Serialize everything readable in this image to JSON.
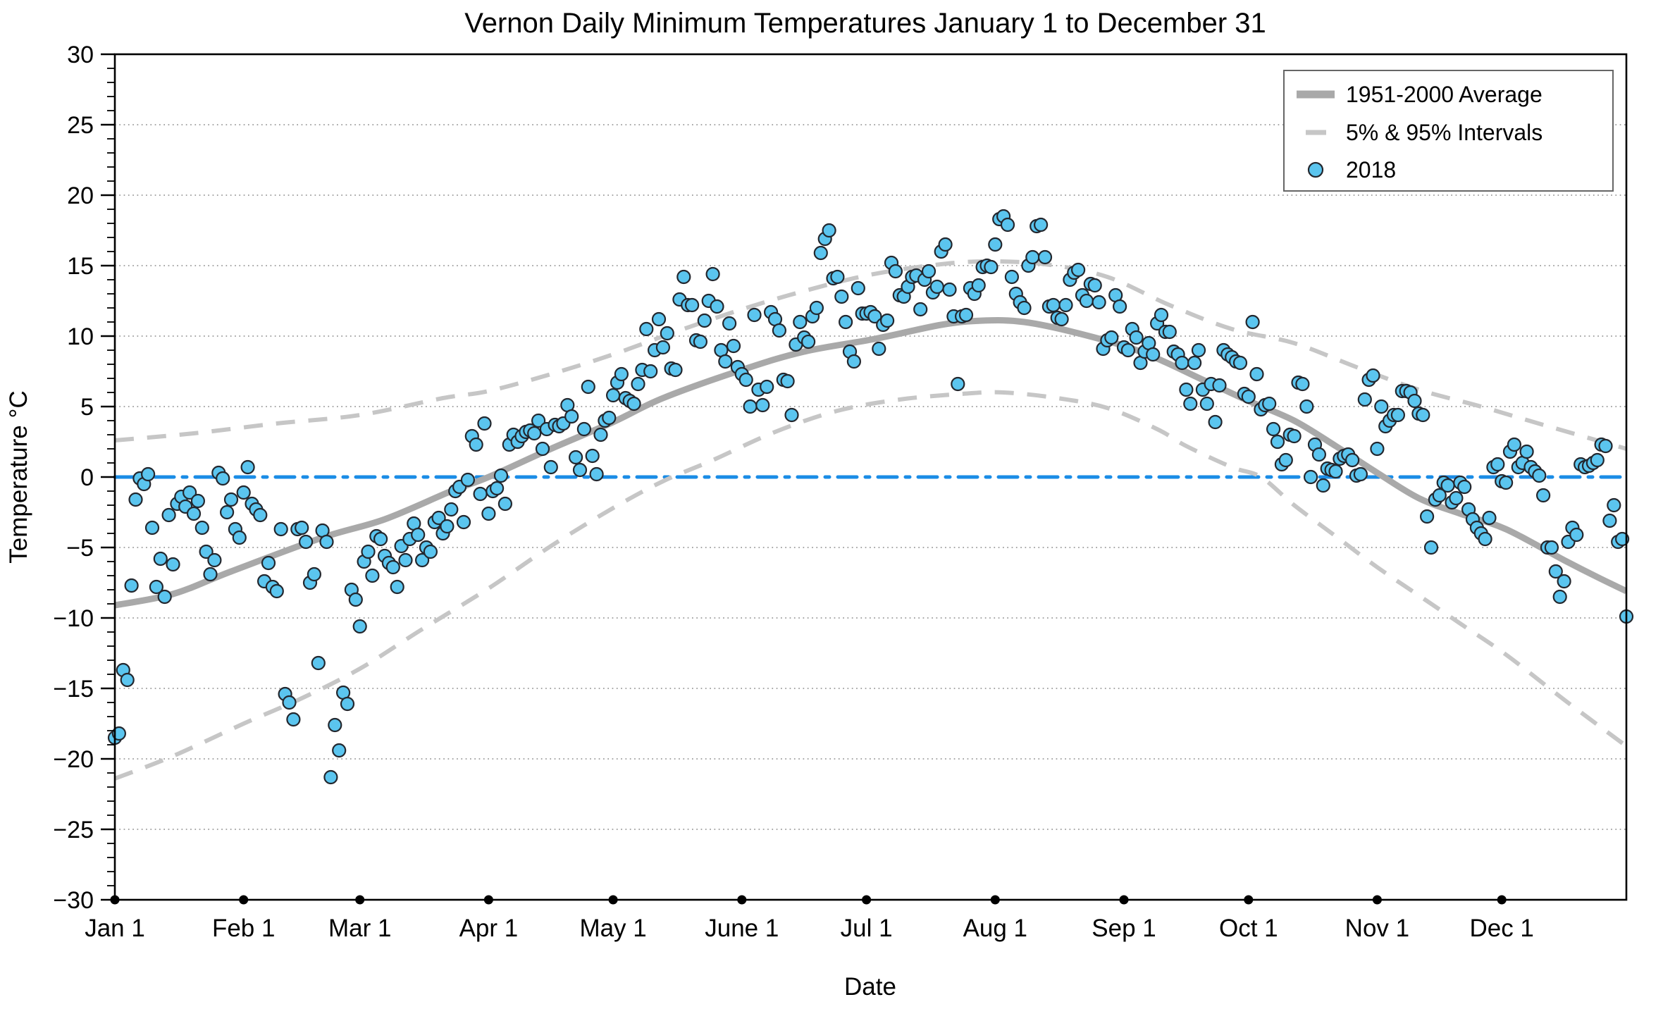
{
  "chart_data": {
    "type": "scatter",
    "title": "Vernon Daily Minimum Temperatures January 1 to December 31",
    "xlabel": "Date",
    "ylabel": "Temperature °C",
    "ylim": [
      -30,
      30
    ],
    "y_major_step": 5,
    "y_minor_step": 1,
    "grid": "dotted horizontal at multiples of 5 except 0",
    "legend_position": "upper right",
    "legend": [
      {
        "label": "1951-2000 Average",
        "swatch": "thick-gray-line"
      },
      {
        "label": "5% & 95% Intervals",
        "swatch": "gray-dash"
      },
      {
        "label": "2018",
        "swatch": "blue-point"
      }
    ],
    "y_tick_labels": [
      "30",
      "25",
      "20",
      "15",
      "10",
      "5",
      "0",
      "−5",
      "−10",
      "−15",
      "−20",
      "−25",
      "−30"
    ],
    "x_ticks": [
      {
        "day": 1,
        "label": "Jan 1"
      },
      {
        "day": 32,
        "label": "Feb 1"
      },
      {
        "day": 60,
        "label": "Mar 1"
      },
      {
        "day": 91,
        "label": "Apr 1"
      },
      {
        "day": 121,
        "label": "May 1"
      },
      {
        "day": 152,
        "label": "June 1"
      },
      {
        "day": 182,
        "label": "Jul 1"
      },
      {
        "day": 213,
        "label": "Aug 1"
      },
      {
        "day": 244,
        "label": "Sep 1"
      },
      {
        "day": 274,
        "label": "Oct 1"
      },
      {
        "day": 305,
        "label": "Nov 1"
      },
      {
        "day": 335,
        "label": "Dec 1"
      }
    ],
    "zero_reference_line": {
      "y": 0,
      "style": "dash-dot",
      "color": "#1a8ce6"
    },
    "series": [
      {
        "name": "1951-2000 Average",
        "type": "line",
        "points": [
          [
            1,
            -9.1
          ],
          [
            15,
            -8.3
          ],
          [
            29,
            -6.7
          ],
          [
            51,
            -4.3
          ],
          [
            66,
            -3.0
          ],
          [
            82,
            -1.0
          ],
          [
            91,
            0.0
          ],
          [
            106,
            2.0
          ],
          [
            121,
            3.9
          ],
          [
            133,
            5.6
          ],
          [
            152,
            7.6
          ],
          [
            167,
            8.9
          ],
          [
            184,
            9.8
          ],
          [
            200,
            10.8
          ],
          [
            210,
            11.1
          ],
          [
            220,
            11.0
          ],
          [
            233,
            10.2
          ],
          [
            248,
            8.9
          ],
          [
            263,
            6.9
          ],
          [
            274,
            5.4
          ],
          [
            285,
            4.0
          ],
          [
            295,
            2.2
          ],
          [
            305,
            0.3
          ],
          [
            315,
            -1.5
          ],
          [
            325,
            -2.6
          ],
          [
            336,
            -3.7
          ],
          [
            350,
            -5.9
          ],
          [
            358,
            -7.1
          ],
          [
            365,
            -8.1
          ]
        ]
      },
      {
        "name": "95% Interval",
        "type": "dashed-line",
        "points": [
          [
            1,
            2.6
          ],
          [
            20,
            3.1
          ],
          [
            40,
            3.8
          ],
          [
            60,
            4.4
          ],
          [
            80,
            5.6
          ],
          [
            91,
            6.1
          ],
          [
            106,
            7.3
          ],
          [
            121,
            8.7
          ],
          [
            136,
            10.3
          ],
          [
            152,
            11.9
          ],
          [
            167,
            13.2
          ],
          [
            182,
            14.3
          ],
          [
            197,
            15.0
          ],
          [
            210,
            15.3
          ],
          [
            225,
            15.1
          ],
          [
            240,
            14.2
          ],
          [
            255,
            12.2
          ],
          [
            270,
            10.5
          ],
          [
            285,
            9.5
          ],
          [
            300,
            7.8
          ],
          [
            315,
            6.2
          ],
          [
            330,
            5.0
          ],
          [
            345,
            3.7
          ],
          [
            365,
            2.0
          ]
        ]
      },
      {
        "name": "5% Interval",
        "type": "dashed-line",
        "points": [
          [
            1,
            -21.4
          ],
          [
            15,
            -19.8
          ],
          [
            32,
            -17.5
          ],
          [
            46,
            -15.7
          ],
          [
            60,
            -13.6
          ],
          [
            75,
            -10.8
          ],
          [
            91,
            -7.9
          ],
          [
            106,
            -4.9
          ],
          [
            121,
            -2.2
          ],
          [
            133,
            -0.3
          ],
          [
            145,
            1.2
          ],
          [
            160,
            3.2
          ],
          [
            175,
            4.7
          ],
          [
            190,
            5.5
          ],
          [
            205,
            5.9
          ],
          [
            215,
            6.0
          ],
          [
            228,
            5.6
          ],
          [
            240,
            4.9
          ],
          [
            252,
            3.4
          ],
          [
            259,
            2.2
          ],
          [
            270,
            0.7
          ],
          [
            277,
            0.0
          ],
          [
            285,
            -2.0
          ],
          [
            295,
            -4.2
          ],
          [
            305,
            -6.4
          ],
          [
            315,
            -8.4
          ],
          [
            325,
            -10.4
          ],
          [
            336,
            -12.6
          ],
          [
            350,
            -15.8
          ],
          [
            365,
            -19.1
          ]
        ]
      },
      {
        "name": "2018",
        "type": "scatter",
        "x_unit": "day_of_year_1_to_365",
        "temps_by_day": [
          -18.5,
          -18.2,
          -13.7,
          -14.4,
          -7.7,
          -1.6,
          -0.1,
          -0.5,
          0.2,
          -3.6,
          -7.8,
          -5.8,
          -8.5,
          -2.7,
          -6.2,
          -1.9,
          -1.4,
          -2.1,
          -1.1,
          -2.6,
          -1.7,
          -3.6,
          -5.3,
          -6.9,
          -5.9,
          0.3,
          -0.1,
          -2.5,
          -1.6,
          -3.7,
          -4.3,
          -1.1,
          0.7,
          -1.9,
          -2.3,
          -2.7,
          -7.4,
          -6.1,
          -7.8,
          -8.1,
          -3.7,
          -15.4,
          -16.0,
          -17.2,
          -3.7,
          -3.6,
          -4.6,
          -7.5,
          -6.9,
          -13.2,
          -3.8,
          -4.6,
          -21.3,
          -17.6,
          -19.4,
          -15.3,
          -16.1,
          -8.0,
          -8.7,
          -10.6,
          -6.0,
          -5.3,
          -7.0,
          -4.2,
          -4.4,
          -5.6,
          -6.1,
          -6.4,
          -7.8,
          -4.9,
          -5.9,
          -4.4,
          -3.3,
          -4.1,
          -5.9,
          -5.0,
          -5.3,
          -3.2,
          -2.9,
          -4.0,
          -3.5,
          -2.3,
          -1.0,
          -0.7,
          -3.2,
          -0.2,
          2.9,
          2.3,
          -1.2,
          3.8,
          -2.6,
          -1.0,
          -0.8,
          0.1,
          -1.9,
          2.3,
          3.0,
          2.5,
          2.9,
          3.2,
          3.3,
          3.1,
          4.0,
          2.0,
          3.4,
          0.7,
          3.7,
          3.6,
          3.8,
          5.1,
          4.3,
          1.4,
          0.5,
          3.4,
          6.4,
          1.5,
          0.2,
          3.0,
          4.0,
          4.2,
          5.8,
          6.7,
          7.3,
          5.6,
          5.4,
          5.2,
          6.6,
          7.6,
          10.5,
          7.5,
          9.0,
          11.2,
          9.2,
          10.2,
          7.7,
          7.6,
          12.6,
          14.2,
          12.2,
          12.2,
          9.7,
          9.6,
          11.1,
          12.5,
          14.4,
          12.1,
          9.0,
          8.2,
          10.9,
          9.3,
          7.8,
          7.3,
          6.9,
          5.0,
          11.5,
          6.2,
          5.1,
          6.4,
          11.7,
          11.2,
          10.4,
          6.9,
          6.8,
          4.4,
          9.4,
          11.0,
          9.9,
          9.6,
          11.4,
          12.0,
          15.9,
          16.9,
          17.5,
          14.1,
          14.2,
          12.8,
          11.0,
          8.9,
          8.2,
          13.4,
          11.6,
          11.6,
          11.7,
          11.4,
          9.1,
          10.8,
          11.1,
          15.2,
          14.6,
          12.9,
          12.8,
          13.5,
          14.2,
          14.3,
          11.9,
          14.0,
          14.6,
          13.1,
          13.5,
          16.0,
          16.5,
          13.3,
          11.4,
          6.6,
          11.4,
          11.5,
          13.4,
          13.0,
          13.6,
          14.9,
          15.0,
          14.9,
          16.5,
          18.3,
          18.5,
          17.9,
          14.2,
          13.0,
          12.4,
          12.0,
          15.0,
          15.6,
          17.8,
          17.9,
          15.6,
          12.1,
          12.2,
          11.3,
          11.2,
          12.2,
          14.0,
          14.5,
          14.7,
          12.9,
          12.5,
          13.7,
          13.6,
          12.4,
          9.1,
          9.7,
          9.9,
          12.9,
          12.1,
          9.2,
          9.0,
          10.5,
          9.9,
          8.1,
          8.9,
          9.5,
          8.7,
          10.9,
          11.5,
          10.3,
          10.3,
          8.9,
          8.7,
          8.1,
          6.2,
          5.2,
          8.1,
          9.0,
          6.2,
          5.2,
          6.6,
          3.9,
          6.5,
          9.0,
          8.7,
          8.5,
          8.2,
          8.1,
          5.9,
          5.7,
          11.0,
          7.3,
          4.8,
          5.1,
          5.2,
          3.4,
          2.5,
          0.9,
          1.2,
          3.0,
          2.9,
          6.7,
          6.6,
          5.0,
          0.0,
          2.3,
          1.6,
          -0.6,
          0.6,
          0.5,
          0.4,
          1.3,
          1.5,
          1.6,
          1.2,
          0.1,
          0.2,
          5.5,
          6.9,
          7.2,
          2.0,
          5.0,
          3.6,
          4.0,
          4.4,
          4.4,
          6.1,
          6.1,
          6.0,
          5.4,
          4.5,
          4.4,
          -2.8,
          -5.0,
          -1.6,
          -1.3,
          -0.4,
          -0.6,
          -1.8,
          -1.5,
          -0.4,
          -0.7,
          -2.3,
          -3.0,
          -3.6,
          -4.0,
          -4.4,
          -2.9,
          0.7,
          0.9,
          -0.3,
          -0.4,
          1.8,
          2.3,
          0.7,
          1.0,
          1.8,
          0.7,
          0.4,
          0.1,
          -1.3,
          -5.0,
          -5.0,
          -6.7,
          -8.5,
          -7.4,
          -4.6,
          -3.6,
          -4.1,
          0.9,
          0.7,
          0.8,
          1.0,
          1.2,
          2.3,
          2.2,
          -3.1,
          -2.0,
          -4.6,
          -4.4,
          -9.9
        ]
      }
    ],
    "colors": {
      "average_line": "#a9a9a9",
      "interval_dash": "#c6c6c6",
      "scatter_fill": "#5bc5ef",
      "scatter_edge": "#23272e",
      "zero_line": "#1a8ce6",
      "grid_dots": "#9a9a9a",
      "axis": "#000000",
      "legend_border": "#666666"
    }
  }
}
